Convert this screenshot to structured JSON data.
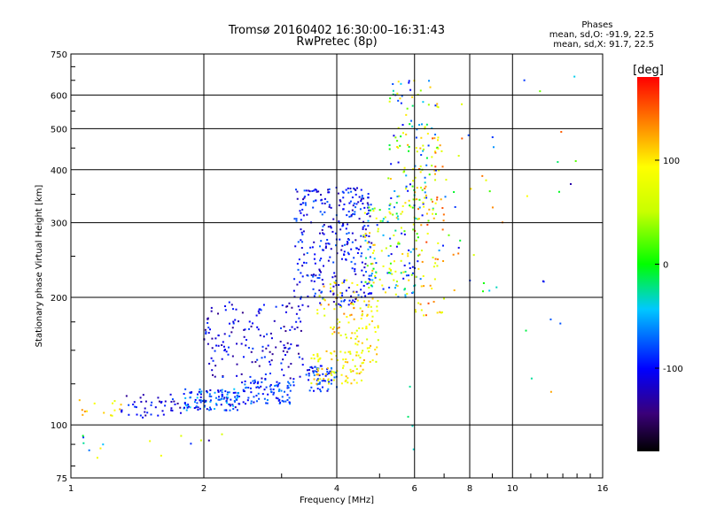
{
  "title_line1": "Tromsø 20160402 16:30:00–16:31:43",
  "title_line2": "RwPretec (8p)",
  "phases": {
    "heading": "Phases",
    "o_line": "mean, sd,O: -91.9, 22.5",
    "x_line": "mean, sd,X:  91.7, 22.5"
  },
  "colorbar": {
    "label": "[deg]",
    "ticks": [
      {
        "value": 100,
        "label": "100"
      },
      {
        "value": 0,
        "label": "0"
      },
      {
        "value": -100,
        "label": "-100"
      }
    ],
    "range": [
      -180,
      180
    ]
  },
  "chart_data": {
    "type": "scatter",
    "xlabel": "Frequency [MHz]",
    "ylabel": "Stationary phase Virtual Height [km]",
    "xscale": "log",
    "yscale": "log",
    "xlim": [
      1,
      16
    ],
    "ylim": [
      75,
      750
    ],
    "x_ticks": [
      {
        "value": 1,
        "label": "1"
      },
      {
        "value": 2,
        "label": "2"
      },
      {
        "value": 4,
        "label": "4"
      },
      {
        "value": 6,
        "label": "6"
      },
      {
        "value": 8,
        "label": "8"
      },
      {
        "value": 10,
        "label": "10"
      },
      {
        "value": 16,
        "label": "16"
      }
    ],
    "y_ticks": [
      {
        "value": 75,
        "label": "75"
      },
      {
        "value": 100,
        "label": "100"
      },
      {
        "value": 200,
        "label": "200"
      },
      {
        "value": 300,
        "label": "300"
      },
      {
        "value": 400,
        "label": "400"
      },
      {
        "value": 500,
        "label": "500"
      },
      {
        "value": 600,
        "label": "600"
      },
      {
        "value": 750,
        "label": "750"
      }
    ],
    "grid": true,
    "color_by": "phase_deg",
    "clusters": [
      {
        "f": [
          1.0,
          1.3
        ],
        "h": [
          103,
          116
        ],
        "phase": [
          60,
          140
        ],
        "n": 14
      },
      {
        "f": [
          1.3,
          1.8
        ],
        "h": [
          104,
          118
        ],
        "phase": [
          -140,
          -80
        ],
        "n": 45
      },
      {
        "f": [
          1.8,
          2.4
        ],
        "h": [
          108,
          122
        ],
        "phase": [
          -120,
          -40
        ],
        "n": 120
      },
      {
        "f": [
          2.4,
          3.2
        ],
        "h": [
          112,
          128
        ],
        "phase": [
          -110,
          -60
        ],
        "n": 90
      },
      {
        "f": [
          2.0,
          3.4
        ],
        "h": [
          128,
          195
        ],
        "phase": [
          -140,
          -80
        ],
        "n": 160
      },
      {
        "f": [
          3.4,
          4.0
        ],
        "h": [
          120,
          138
        ],
        "phase": [
          -120,
          -60
        ],
        "n": 60
      },
      {
        "f": [
          3.5,
          4.6
        ],
        "h": [
          125,
          150
        ],
        "phase": [
          60,
          130
        ],
        "n": 80
      },
      {
        "f": [
          4.4,
          5.0
        ],
        "h": [
          140,
          200
        ],
        "phase": [
          50,
          130
        ],
        "n": 50
      },
      {
        "f": [
          3.2,
          4.8
        ],
        "h": [
          190,
          365
        ],
        "phase": [
          -130,
          -70
        ],
        "n": 320
      },
      {
        "f": [
          3.6,
          4.6
        ],
        "h": [
          160,
          220
        ],
        "phase": [
          60,
          140
        ],
        "n": 60
      },
      {
        "f": [
          4.6,
          6.2
        ],
        "h": [
          200,
          330
        ],
        "phase": [
          -120,
          120
        ],
        "n": 150
      },
      {
        "f": [
          5.2,
          6.8
        ],
        "h": [
          300,
          650
        ],
        "phase": [
          -110,
          130
        ],
        "n": 140
      },
      {
        "f": [
          6.0,
          7.0
        ],
        "h": [
          180,
          480
        ],
        "phase": [
          60,
          160
        ],
        "n": 70
      },
      {
        "f": [
          6.8,
          9.5
        ],
        "h": [
          200,
          650
        ],
        "phase": [
          -120,
          150
        ],
        "n": 30
      },
      {
        "f": [
          0.95,
          2.2
        ],
        "h": [
          82,
          96
        ],
        "phase": [
          -130,
          110
        ],
        "n": 16
      },
      {
        "f": [
          5.8,
          6.0
        ],
        "h": [
          85,
          130
        ],
        "phase": [
          -60,
          0
        ],
        "n": 4
      },
      {
        "f": [
          10.5,
          14.0
        ],
        "h": [
          110,
          680
        ],
        "phase": [
          -130,
          150
        ],
        "n": 16
      }
    ]
  }
}
